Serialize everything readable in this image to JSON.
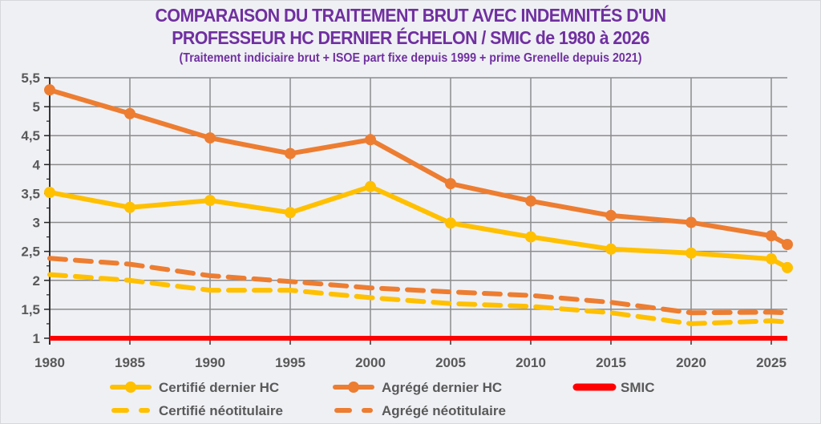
{
  "title": {
    "line1": "COMPARAISON DU TRAITEMENT BRUT AVEC INDEMNITÉS D'UN",
    "line2": "PROFESSEUR HC DERNIER ÉCHELON / SMIC de 1980 à 2026",
    "subtitle": "(Traitement indiciaire brut + ISOE part fixe depuis 1999 + prime Grenelle depuis 2021)"
  },
  "chart_data": {
    "type": "line",
    "title": "COMPARAISON DU TRAITEMENT BRUT AVEC INDEMNITÉS D'UN PROFESSEUR HC DERNIER ÉCHELON / SMIC de 1980 à 2026",
    "subtitle": "(Traitement indiciaire brut + ISOE part fixe depuis 1999 + prime Grenelle depuis 2021)",
    "xlabel": "",
    "ylabel": "",
    "xlim": [
      1980,
      2026
    ],
    "ylim": [
      1,
      5.5
    ],
    "grid": true,
    "legend_position": "bottom",
    "x_ticks": [
      1980,
      1985,
      1990,
      1995,
      2000,
      2005,
      2010,
      2015,
      2020,
      2025
    ],
    "x_tick_labels": [
      "1980",
      "1985",
      "1990",
      "1995",
      "2000",
      "2005",
      "2010",
      "2015",
      "2020",
      "2025"
    ],
    "y_ticks": [
      1,
      1.5,
      2,
      2.5,
      3,
      3.5,
      4,
      4.5,
      5,
      5.5
    ],
    "y_tick_labels": [
      "1",
      "1,5",
      "2",
      "2,5",
      "3",
      "3,5",
      "4",
      "4,5",
      "5",
      "5,5"
    ],
    "x": [
      1980,
      1985,
      1990,
      1995,
      2000,
      2005,
      2010,
      2015,
      2020,
      2025,
      2026
    ],
    "series": [
      {
        "name": "Certifié dernier HC",
        "style": "solid-marker",
        "color": "#ffc000",
        "values": [
          3.52,
          3.26,
          3.38,
          3.17,
          3.62,
          2.99,
          2.75,
          2.54,
          2.47,
          2.37,
          2.22
        ]
      },
      {
        "name": "Agrégé dernier HC",
        "style": "solid-marker",
        "color": "#ed7d31",
        "values": [
          5.29,
          4.88,
          4.46,
          4.19,
          4.43,
          3.67,
          3.37,
          3.12,
          3.0,
          2.77,
          2.62
        ]
      },
      {
        "name": "SMIC",
        "style": "solid-thick",
        "color": "#ff0000",
        "values": [
          1,
          1,
          1,
          1,
          1,
          1,
          1,
          1,
          1,
          1,
          1
        ]
      },
      {
        "name": "Certifié néotitulaire",
        "style": "dashed",
        "color": "#ffc000",
        "values": [
          2.1,
          2.0,
          1.83,
          1.83,
          1.7,
          1.6,
          1.55,
          1.44,
          1.25,
          1.3,
          1.28
        ]
      },
      {
        "name": "Agrégé néotitulaire",
        "style": "dashed",
        "color": "#ed7d31",
        "values": [
          2.38,
          2.28,
          2.08,
          1.98,
          1.87,
          1.8,
          1.74,
          1.62,
          1.44,
          1.45,
          1.44
        ]
      }
    ]
  },
  "colors": {
    "title": "#7030a0",
    "axis_text": "#595959",
    "grid": "#8c8c8c",
    "background": "#eff0f4"
  }
}
